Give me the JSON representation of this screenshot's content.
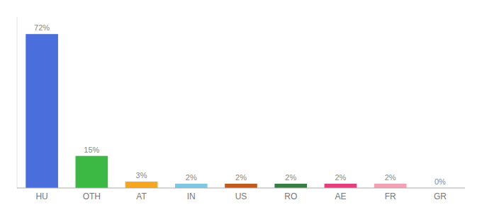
{
  "chart_data": {
    "type": "bar",
    "categories": [
      "HU",
      "OTH",
      "AT",
      "IN",
      "US",
      "RO",
      "AE",
      "FR",
      "GR"
    ],
    "values": [
      72,
      15,
      3,
      2,
      2,
      2,
      2,
      2,
      0
    ],
    "value_labels": [
      "72%",
      "15%",
      "3%",
      "2%",
      "2%",
      "2%",
      "2%",
      "2%",
      "0%"
    ],
    "colors": [
      "#4a6edb",
      "#3cb944",
      "#f5a623",
      "#7ec8e3",
      "#c05a1f",
      "#3a7d44",
      "#e0407b",
      "#f4a0b5",
      "#cccccc"
    ],
    "ylim": [
      0,
      80
    ],
    "data_labels": true,
    "tick_labels": "x",
    "grid": false
  }
}
